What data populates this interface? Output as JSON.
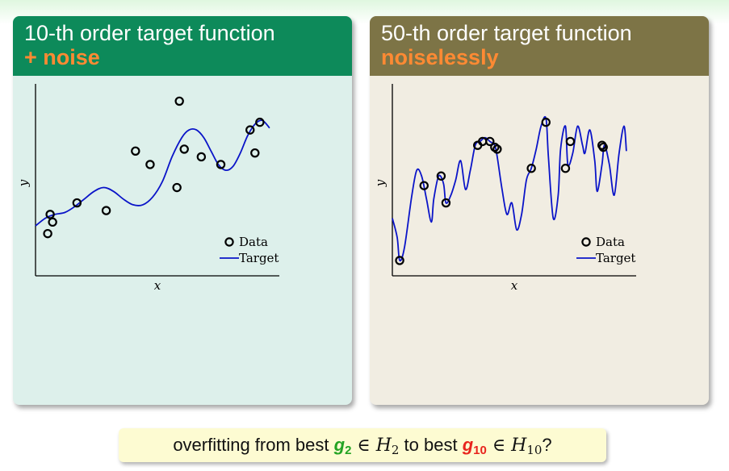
{
  "left_block": {
    "title_line1": "10-th order target function",
    "title_line2": "+ noise"
  },
  "right_block": {
    "title_line1": "50-th order target function",
    "title_line2": "noiselessly"
  },
  "caption": {
    "prefix": "overfitting from best ",
    "g2": "g",
    "g2_sub": "2",
    "in1": " ∈ ",
    "H2": "H",
    "H2_sub": "2",
    "middle": " to best ",
    "g10": "g",
    "g10_sub": "10",
    "in2": " ∈ ",
    "H10": "H",
    "H10_sub": "10",
    "suffix": "?"
  },
  "colors": {
    "left_header": "#0d8a5a",
    "right_header": "#7d7446",
    "highlight_orange": "#ff8a33",
    "target_line": "#0a14c8",
    "g2_green": "#23a323",
    "g10_red": "#e8241d"
  },
  "chart_data": [
    {
      "type": "scatter",
      "xlabel": "x",
      "ylabel": "y",
      "xlim": [
        0,
        1
      ],
      "ylim": [
        0,
        1
      ],
      "grid": false,
      "legend": "bottom-right",
      "series": [
        {
          "name": "Data",
          "kind": "points",
          "x": [
            0.05,
            0.06,
            0.07,
            0.17,
            0.29,
            0.41,
            0.47,
            0.58,
            0.59,
            0.61,
            0.68,
            0.76,
            0.88,
            0.9,
            0.92
          ],
          "y": [
            0.22,
            0.32,
            0.28,
            0.38,
            0.34,
            0.65,
            0.58,
            0.46,
            0.91,
            0.66,
            0.62,
            0.58,
            0.76,
            0.64,
            0.8
          ]
        },
        {
          "name": "Target",
          "kind": "line",
          "x": [
            0.0,
            0.04,
            0.08,
            0.12,
            0.16,
            0.2,
            0.24,
            0.28,
            0.32,
            0.36,
            0.4,
            0.44,
            0.48,
            0.52,
            0.56,
            0.6,
            0.63,
            0.66,
            0.69,
            0.72,
            0.75,
            0.78,
            0.81,
            0.84,
            0.87,
            0.9,
            0.93,
            0.96
          ],
          "y": [
            0.26,
            0.3,
            0.32,
            0.33,
            0.36,
            0.4,
            0.44,
            0.46,
            0.44,
            0.4,
            0.37,
            0.37,
            0.41,
            0.49,
            0.62,
            0.72,
            0.76,
            0.76,
            0.72,
            0.65,
            0.58,
            0.55,
            0.57,
            0.64,
            0.73,
            0.79,
            0.81,
            0.77
          ]
        }
      ]
    },
    {
      "type": "scatter",
      "xlabel": "x",
      "ylabel": "y",
      "xlim": [
        0,
        1
      ],
      "ylim": [
        0,
        1
      ],
      "grid": false,
      "legend": "bottom-right",
      "series": [
        {
          "name": "Data",
          "kind": "points",
          "x": [
            0.03,
            0.13,
            0.2,
            0.22,
            0.35,
            0.37,
            0.4,
            0.42,
            0.43,
            0.57,
            0.63,
            0.71,
            0.73,
            0.86,
            0.865
          ],
          "y": [
            0.08,
            0.47,
            0.52,
            0.38,
            0.68,
            0.7,
            0.7,
            0.67,
            0.66,
            0.56,
            0.8,
            0.56,
            0.7,
            0.68,
            0.67
          ]
        },
        {
          "name": "Target",
          "kind": "line",
          "x": [
            0.0,
            0.02,
            0.03,
            0.05,
            0.08,
            0.1,
            0.12,
            0.14,
            0.16,
            0.17,
            0.19,
            0.21,
            0.22,
            0.24,
            0.26,
            0.28,
            0.3,
            0.32,
            0.34,
            0.36,
            0.38,
            0.4,
            0.42,
            0.43,
            0.45,
            0.47,
            0.49,
            0.51,
            0.53,
            0.55,
            0.57,
            0.59,
            0.61,
            0.63,
            0.64,
            0.66,
            0.68,
            0.69,
            0.71,
            0.72,
            0.74,
            0.76,
            0.78,
            0.79,
            0.81,
            0.83,
            0.84,
            0.86,
            0.87,
            0.89,
            0.91,
            0.93,
            0.95,
            0.96
          ],
          "y": [
            0.3,
            0.2,
            0.08,
            0.15,
            0.42,
            0.55,
            0.52,
            0.4,
            0.28,
            0.4,
            0.52,
            0.48,
            0.38,
            0.42,
            0.5,
            0.6,
            0.45,
            0.55,
            0.68,
            0.7,
            0.72,
            0.7,
            0.68,
            0.62,
            0.45,
            0.32,
            0.38,
            0.24,
            0.32,
            0.5,
            0.56,
            0.66,
            0.78,
            0.82,
            0.62,
            0.3,
            0.42,
            0.66,
            0.78,
            0.58,
            0.64,
            0.78,
            0.68,
            0.64,
            0.76,
            0.6,
            0.44,
            0.58,
            0.68,
            0.58,
            0.42,
            0.64,
            0.78,
            0.65
          ]
        }
      ]
    }
  ]
}
